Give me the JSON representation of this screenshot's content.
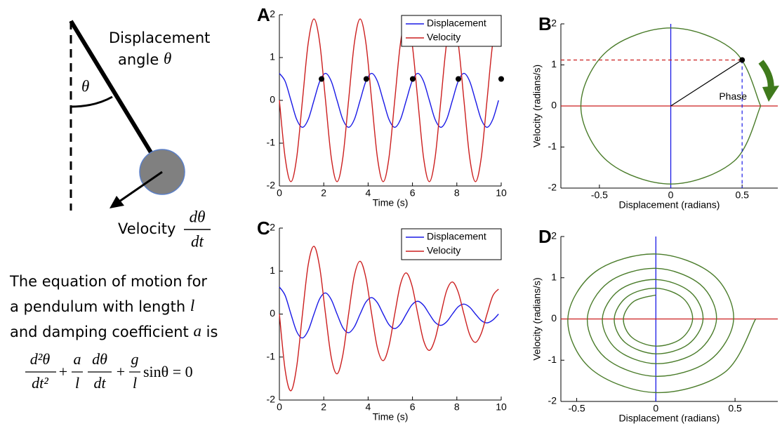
{
  "diagram": {
    "angle_label": [
      "Displacement",
      "angle ",
      "θ"
    ],
    "theta": "θ",
    "velocity_label": "Velocity",
    "velocity_fraction": {
      "num": "dθ",
      "den": "dt"
    },
    "text_lines": [
      [
        "The equation of motion for"
      ],
      [
        "a pendulum with length ",
        "l"
      ],
      [
        "and damping coefficient ",
        "a",
        " is"
      ]
    ],
    "equation": [
      {
        "num": "d²θ",
        "den": "dt²"
      },
      "+",
      {
        "num": "a",
        "den": "l"
      },
      {
        "num": "dθ",
        "den": "dt"
      },
      "+",
      {
        "num": "g",
        "den": "l"
      },
      "sinθ = 0"
    ]
  },
  "chart_data": [
    {
      "type": "line",
      "label": "A",
      "xlabel": "Time (s)",
      "x": [
        0,
        0.26,
        0.52,
        0.78,
        1.04,
        1.3,
        1.56,
        1.82,
        2.08,
        2.34,
        2.6,
        2.86,
        3.12,
        3.38,
        3.64,
        3.9,
        4.16,
        4.42,
        4.68,
        4.94,
        5.2,
        5.46,
        5.72,
        5.98,
        6.24,
        6.5,
        6.76,
        7.02,
        7.28,
        7.54,
        7.8,
        8.06,
        8.32,
        8.58,
        8.84,
        9.1,
        9.36,
        9.62,
        9.88
      ],
      "series": [
        {
          "name": "Displacement",
          "color": "#1a1ae6",
          "values": [
            0.63,
            0.445,
            0,
            -0.445,
            -0.63,
            -0.445,
            0,
            0.445,
            0.63,
            0.445,
            0,
            -0.445,
            -0.63,
            -0.445,
            0,
            0.445,
            0.63,
            0.445,
            0,
            -0.445,
            -0.63,
            -0.445,
            0,
            0.445,
            0.63,
            0.445,
            0,
            -0.445,
            -0.63,
            -0.445,
            0,
            0.445,
            0.63,
            0.445,
            0,
            -0.445,
            -0.63,
            -0.445,
            0
          ]
        },
        {
          "name": "Velocity",
          "color": "#cc1f1f",
          "values": [
            0,
            -1.34,
            -1.9,
            -1.34,
            0,
            1.34,
            1.9,
            1.34,
            0,
            -1.34,
            -1.9,
            -1.34,
            0,
            1.34,
            1.9,
            1.34,
            0,
            -1.34,
            -1.9,
            -1.34,
            0,
            1.34,
            1.9,
            1.34,
            0,
            -1.34,
            -1.9,
            -1.34,
            0,
            1.34,
            1.9,
            1.34,
            0,
            -1.34,
            -1.9,
            -1.34,
            0,
            1.34,
            1.9
          ]
        }
      ],
      "markers": {
        "x": [
          1.9,
          3.92,
          6.01,
          8.07,
          10
        ],
        "values": [
          0.5,
          0.5,
          0.5,
          0.5,
          0.5
        ],
        "color": "#000000"
      },
      "xlim": [
        0,
        10
      ],
      "xticks": [
        0,
        2,
        4,
        6,
        8,
        10
      ],
      "ylim": [
        -2,
        2
      ],
      "yticks": [
        -2,
        -1,
        0,
        1,
        2
      ]
    },
    {
      "type": "line",
      "label": "B",
      "xlabel": "Displacement (radians)",
      "ylabel": "Velocity (radians/s)",
      "x": [
        0.63,
        0.445,
        0,
        -0.445,
        -0.63,
        -0.445,
        0,
        0.445,
        0.63
      ],
      "series": [
        {
          "color": "#4a7c2a",
          "values": [
            0,
            -1.34,
            -1.9,
            -1.34,
            0,
            1.34,
            1.9,
            1.34,
            0
          ]
        }
      ],
      "markers": {
        "x": [
          0.5
        ],
        "values": [
          1.12
        ],
        "color": "#000000"
      },
      "marker_guides": true,
      "annotation": "Phase",
      "zero_lines": true,
      "xlim": [
        -0.77,
        0.75
      ],
      "xticks": [
        -0.5,
        0,
        0.5
      ],
      "ylim": [
        -2,
        2
      ],
      "yticks": [
        -2,
        -1,
        0,
        1,
        2
      ]
    },
    {
      "type": "line",
      "label": "C",
      "xlabel": "Time (s)",
      "x": [
        0,
        0.26,
        0.52,
        0.78,
        1.04,
        1.3,
        1.56,
        1.82,
        2.08,
        2.34,
        2.6,
        2.86,
        3.12,
        3.38,
        3.64,
        3.9,
        4.16,
        4.42,
        4.68,
        4.94,
        5.2,
        5.46,
        5.72,
        5.98,
        6.24,
        6.5,
        6.76,
        7.02,
        7.28,
        7.54,
        7.8,
        8.06,
        8.32,
        8.58,
        8.84,
        9.1,
        9.36,
        9.62,
        9.88
      ],
      "series": [
        {
          "name": "Displacement",
          "color": "#1a1ae6",
          "values": [
            0.63,
            0.432,
            0,
            -0.406,
            -0.556,
            -0.381,
            0,
            0.358,
            0.491,
            0.336,
            0,
            -0.316,
            -0.433,
            -0.297,
            0,
            0.279,
            0.383,
            0.262,
            0,
            -0.246,
            -0.338,
            -0.231,
            0,
            0.217,
            0.298,
            0.204,
            0,
            -0.192,
            -0.263,
            -0.18,
            0,
            0.169,
            0.232,
            0.159,
            0,
            -0.15,
            -0.205,
            -0.14,
            0
          ]
        },
        {
          "name": "Velocity",
          "color": "#cc1f1f",
          "values": [
            0,
            -1.302,
            -1.785,
            -1.223,
            0,
            1.149,
            1.576,
            1.08,
            0,
            -1.014,
            -1.391,
            -0.953,
            0,
            0.895,
            1.228,
            0.841,
            0,
            -0.79,
            -1.084,
            -0.743,
            0,
            0.698,
            0.957,
            0.656,
            0,
            -0.616,
            -0.845,
            -0.579,
            0,
            0.544,
            0.746,
            0.511,
            0,
            -0.48,
            -0.658,
            -0.451,
            0,
            0.424,
            0.581
          ]
        }
      ],
      "xlim": [
        0,
        10
      ],
      "xticks": [
        0,
        2,
        4,
        6,
        8,
        10
      ],
      "ylim": [
        -2,
        2
      ],
      "yticks": [
        -2,
        -1,
        0,
        1,
        2
      ]
    },
    {
      "type": "line",
      "label": "D",
      "xlabel": "Displacement (radians)",
      "ylabel": "Velocity (radians/s)",
      "x": [
        0.63,
        0.432,
        0,
        -0.406,
        -0.556,
        -0.381,
        0,
        0.358,
        0.491,
        0.336,
        0,
        -0.316,
        -0.433,
        -0.297,
        0,
        0.279,
        0.383,
        0.262,
        0,
        -0.246,
        -0.338,
        -0.231,
        0,
        0.217,
        0.298,
        0.204,
        0,
        -0.192,
        -0.263,
        -0.18,
        0,
        0.169,
        0.232,
        0.159,
        0,
        -0.15,
        -0.205,
        -0.14,
        0
      ],
      "series": [
        {
          "color": "#4a7c2a",
          "values": [
            0,
            -1.302,
            -1.785,
            -1.223,
            0,
            1.149,
            1.576,
            1.08,
            0,
            -1.014,
            -1.391,
            -0.953,
            0,
            0.895,
            1.228,
            0.841,
            0,
            -0.79,
            -1.084,
            -0.743,
            0,
            0.698,
            0.957,
            0.656,
            0,
            -0.616,
            -0.845,
            -0.579,
            0,
            0.544,
            0.746,
            0.511,
            0,
            -0.48,
            -0.658,
            -0.451,
            0,
            0.424,
            0.581
          ]
        }
      ],
      "zero_lines": true,
      "xlim": [
        -0.6,
        0.77
      ],
      "xticks": [
        -0.5,
        0,
        0.5
      ],
      "ylim": [
        -2,
        2
      ],
      "yticks": [
        -2,
        -1,
        0,
        1,
        2
      ]
    }
  ]
}
